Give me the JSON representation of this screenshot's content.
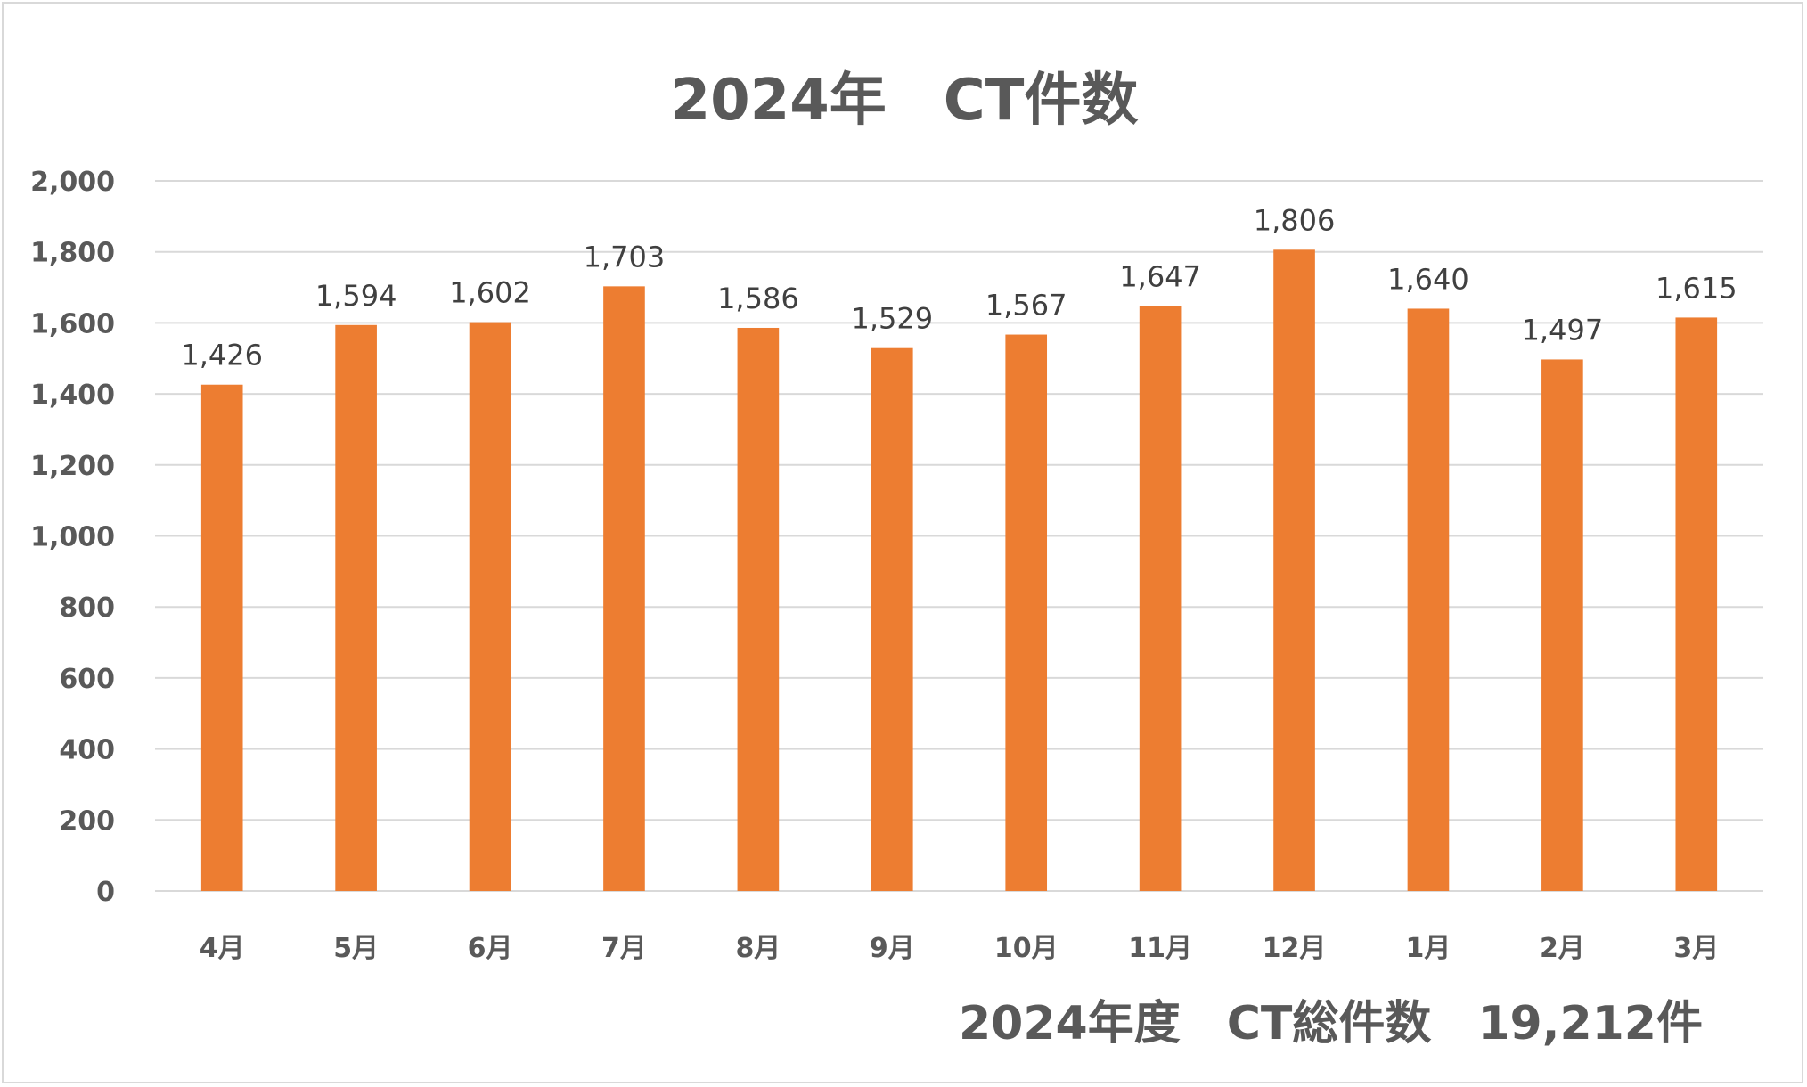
{
  "chart_data": {
    "type": "bar",
    "title": "2024年　CT件数",
    "categories": [
      "4月",
      "5月",
      "6月",
      "7月",
      "8月",
      "9月",
      "10月",
      "11月",
      "12月",
      "1月",
      "2月",
      "3月"
    ],
    "values": [
      1426,
      1594,
      1602,
      1703,
      1586,
      1529,
      1567,
      1647,
      1806,
      1640,
      1497,
      1615
    ],
    "data_labels": [
      "1,426",
      "1,594",
      "1,602",
      "1,703",
      "1,586",
      "1,529",
      "1,567",
      "1,647",
      "1,806",
      "1,640",
      "1,497",
      "1,615"
    ],
    "ylim": [
      0,
      2000
    ],
    "yticks": [
      "0",
      "200",
      "400",
      "600",
      "800",
      "1,000",
      "1,200",
      "1,400",
      "1,600",
      "1,800",
      "2,000"
    ],
    "ytick_values": [
      0,
      200,
      400,
      600,
      800,
      1000,
      1200,
      1400,
      1600,
      1800,
      2000
    ],
    "grid": true,
    "bar_color": "#ED7D31",
    "annotation": "2024年度　CT総件数　19,212件"
  }
}
